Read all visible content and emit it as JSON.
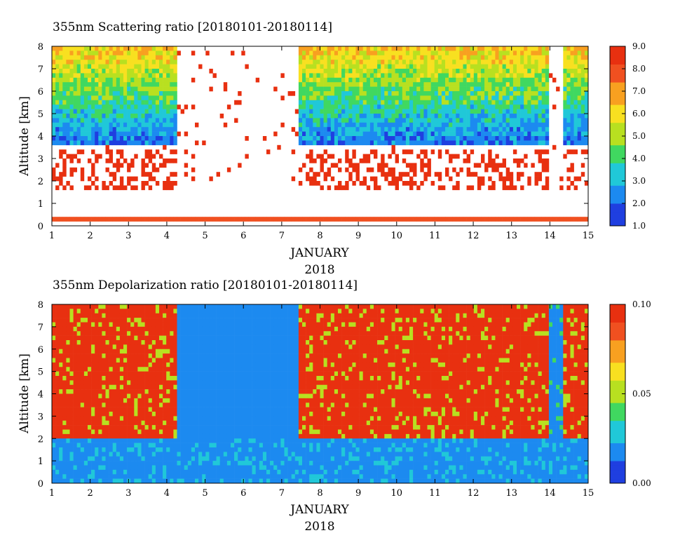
{
  "chart_data": [
    {
      "type": "heatmap",
      "title": "355nm Scattering ratio [20180101-20180114]",
      "xlabel": "JANUARY",
      "xlabel2": "2018",
      "ylabel": "Altitude [km]",
      "x_ticks": [
        "1",
        "2",
        "3",
        "4",
        "5",
        "6",
        "7",
        "8",
        "9",
        "10",
        "11",
        "12",
        "13",
        "14",
        "15"
      ],
      "y_ticks": [
        "0",
        "1",
        "2",
        "3",
        "4",
        "5",
        "6",
        "7",
        "8"
      ],
      "xlim": [
        1,
        15
      ],
      "ylim": [
        0,
        8
      ],
      "colorbar": {
        "min": 1.0,
        "max": 9.0,
        "ticks": [
          "1.0",
          "2.0",
          "3.0",
          "4.0",
          "5.0",
          "6.0",
          "7.0",
          "8.0",
          "9.0"
        ]
      },
      "colormap": [
        "#1f3fe0",
        "#1c8af0",
        "#20c8d8",
        "#40d860",
        "#b8e020",
        "#f8e020",
        "#f8a020",
        "#f05020",
        "#e83010"
      ]
    },
    {
      "type": "heatmap",
      "title": "355nm Depolarization ratio [20180101-20180114]",
      "xlabel": "JANUARY",
      "xlabel2": "2018",
      "ylabel": "Altitude [km]",
      "x_ticks": [
        "1",
        "2",
        "3",
        "4",
        "5",
        "6",
        "7",
        "8",
        "9",
        "10",
        "11",
        "12",
        "13",
        "14",
        "15"
      ],
      "y_ticks": [
        "0",
        "1",
        "2",
        "3",
        "4",
        "5",
        "6",
        "7",
        "8"
      ],
      "xlim": [
        1,
        15
      ],
      "ylim": [
        0,
        8
      ],
      "colorbar": {
        "min": 0.0,
        "max": 0.1,
        "ticks": [
          "0.00",
          "0.05",
          "0.10"
        ]
      },
      "colormap": [
        "#1f3fe0",
        "#1c8af0",
        "#20c8d8",
        "#40d860",
        "#b8e020",
        "#f8e020",
        "#f8a020",
        "#f05020",
        "#e83010"
      ]
    }
  ]
}
